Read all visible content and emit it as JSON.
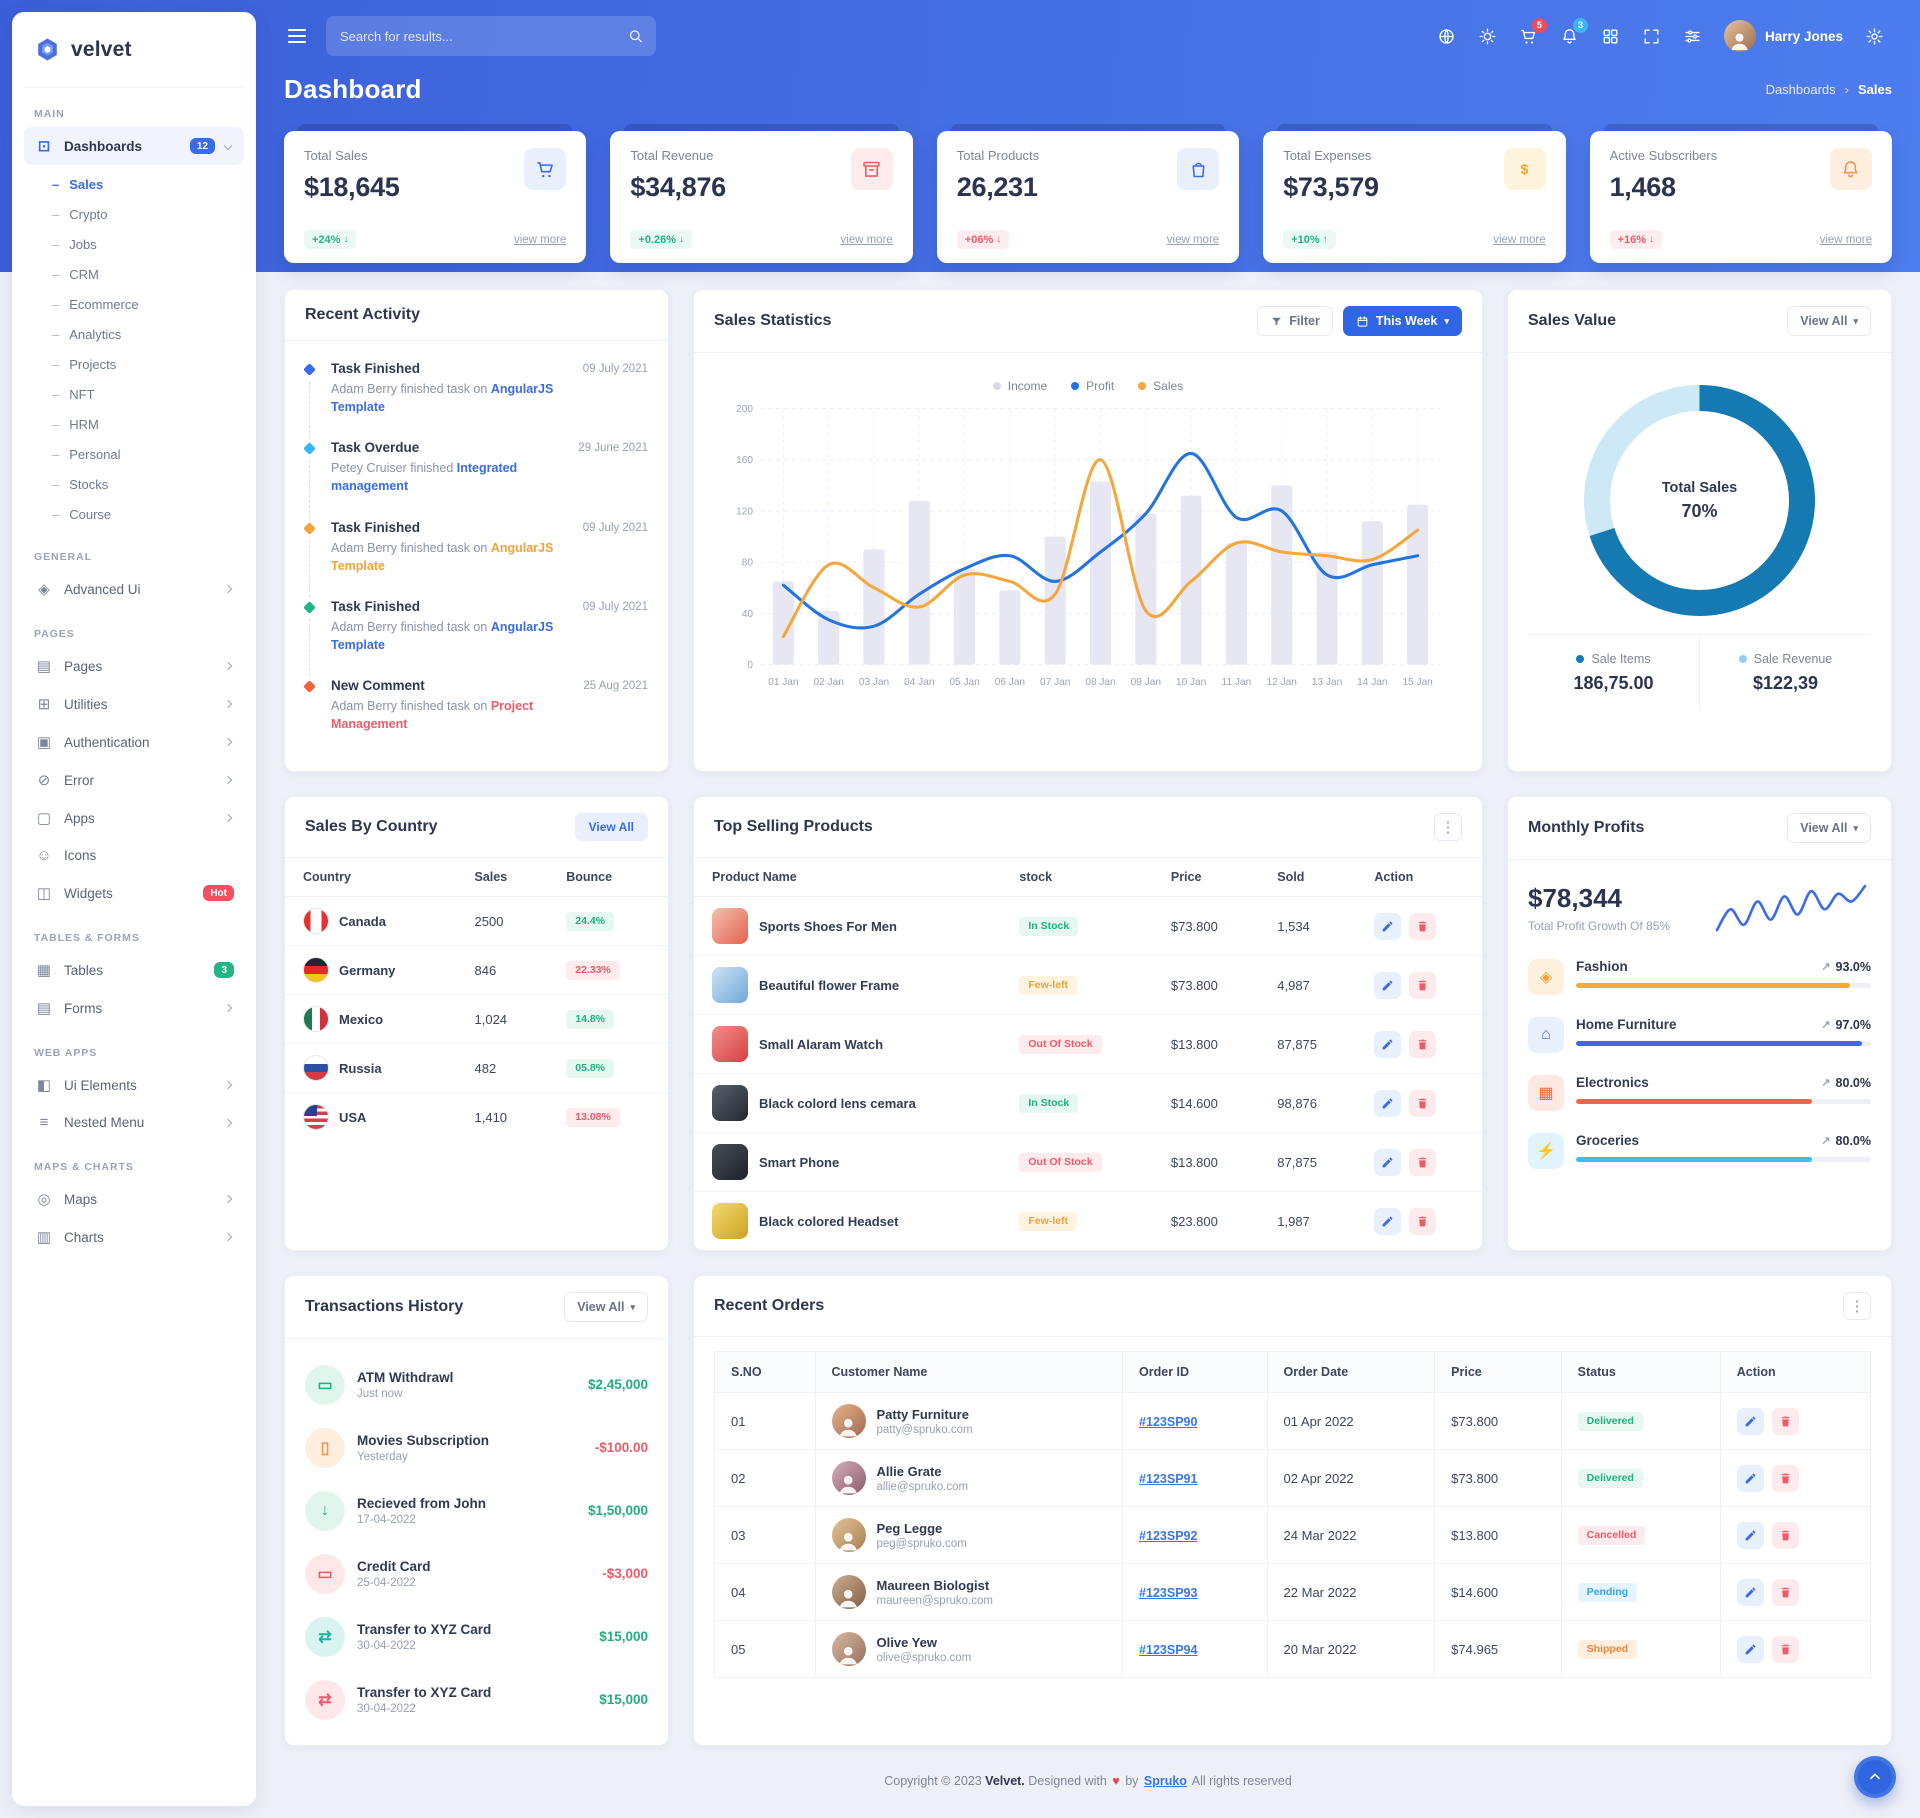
{
  "brand": {
    "name": "velvet"
  },
  "topbar": {
    "search_placeholder": "Search for results...",
    "cart_badge": "5",
    "alert_badge": "3",
    "user_name": "Harry Jones",
    "icons": [
      "globe-icon",
      "theme-icon",
      "cart-icon",
      "notifications-icon",
      "apps-grid-icon",
      "fullscreen-icon",
      "filter-icon",
      "settings-gear-icon"
    ]
  },
  "page_header": {
    "title": "Dashboard",
    "breadcrumb_root": "Dashboards",
    "breadcrumb_sep": "›",
    "breadcrumb_current": "Sales"
  },
  "stat_cards": [
    {
      "label": "Total Sales",
      "value": "$18,645",
      "delta": "+24%",
      "arrow": "↓",
      "tone": "success",
      "link": "view more",
      "icon": "cart-icon"
    },
    {
      "label": "Total Revenue",
      "value": "$34,876",
      "delta": "+0.26%",
      "arrow": "↓",
      "tone": "success",
      "link": "view more",
      "icon": "revenue-box-icon"
    },
    {
      "label": "Total Products",
      "value": "26,231",
      "delta": "+06%",
      "arrow": "↓",
      "tone": "danger",
      "link": "view more",
      "icon": "products-bag-icon"
    },
    {
      "label": "Total Expenses",
      "value": "$73,579",
      "delta": "+10%",
      "arrow": "↑",
      "tone": "success",
      "link": "view more",
      "icon": "expenses-dollar-icon"
    },
    {
      "label": "Active Subscribers",
      "value": "1,468",
      "delta": "+16%",
      "arrow": "↓",
      "tone": "danger",
      "link": "view more",
      "icon": "subscribers-bell-icon"
    }
  ],
  "recent_activity": {
    "title": "Recent Activity",
    "items": [
      {
        "title": "Task Finished",
        "pre": "Adam Berry finished task on",
        "highlight": "AngularJS Template",
        "date": "09 July 2021",
        "tone": "primary",
        "hl": "primary"
      },
      {
        "title": "Task Overdue",
        "pre": "Petey Cruiser finished",
        "highlight": "Integrated management",
        "date": "29 June 2021",
        "tone": "info",
        "hl": "primary"
      },
      {
        "title": "Task Finished",
        "pre": "Adam Berry finished task on",
        "highlight": "AngularJS Template",
        "date": "09 July 2021",
        "tone": "warning",
        "hl": "warning"
      },
      {
        "title": "Task Finished",
        "pre": "Adam Berry finished task on",
        "highlight": "AngularJS Template",
        "date": "09 July 2021",
        "tone": "success",
        "hl": "primary"
      },
      {
        "title": "New Comment",
        "pre": "Adam Berry finished task on",
        "highlight": "Project Management",
        "date": "25 Aug 2021",
        "tone": "danger",
        "hl": "danger"
      }
    ]
  },
  "sales_statistics": {
    "title": "Sales Statistics",
    "filter_label": "Filter",
    "range_label": "This Week",
    "legend": [
      {
        "label": "Income",
        "color": "#d9d9ec"
      },
      {
        "label": "Profit",
        "color": "#2274e0"
      },
      {
        "label": "Sales",
        "color": "#f5a63c"
      }
    ]
  },
  "sales_value": {
    "title": "Sales Value",
    "view_all": "View All",
    "center_label": "Total Sales",
    "center_value": "70%",
    "stats": [
      {
        "label": "Sale Items",
        "value": "186,75.00",
        "color": "#1579b2"
      },
      {
        "label": "Sale Revenue",
        "value": "$122,39",
        "color": "#8fd0ee"
      }
    ]
  },
  "sales_by_country": {
    "title": "Sales By Country",
    "view_all": "View All",
    "columns": [
      "Country",
      "Sales",
      "Bounce"
    ],
    "rows": [
      {
        "country": "Canada",
        "flag": "flag-canada",
        "flag_icon": "canada-flag-icon",
        "sales": "2500",
        "bounce": "24.4%",
        "tone": "success"
      },
      {
        "country": "Germany",
        "flag": "flag-germany",
        "flag_icon": "germany-flag-icon",
        "sales": "846",
        "bounce": "22.33%",
        "tone": "danger"
      },
      {
        "country": "Mexico",
        "flag": "flag-mexico",
        "flag_icon": "mexico-flag-icon",
        "sales": "1,024",
        "bounce": "14.8%",
        "tone": "success"
      },
      {
        "country": "Russia",
        "flag": "flag-russia",
        "flag_icon": "russia-flag-icon",
        "sales": "482",
        "bounce": "05.8%",
        "tone": "success"
      },
      {
        "country": "USA",
        "flag": "flag-usa",
        "flag_icon": "usa-flag-icon",
        "sales": "1,410",
        "bounce": "13.08%",
        "tone": "danger"
      }
    ]
  },
  "top_selling": {
    "title": "Top Selling Products",
    "columns": [
      "Product Name",
      "stock",
      "Price",
      "Sold",
      "Action"
    ],
    "rows": [
      {
        "name": "Sports Shoes For Men",
        "stock": "In Stock",
        "stock_tone": "success",
        "price": "$73.800",
        "sold": "1,534",
        "thumb": "th-shoes",
        "thumb_icon": "shoes-product-image"
      },
      {
        "name": "Beautiful flower Frame",
        "stock": "Few-left",
        "stock_tone": "warning",
        "price": "$73.800",
        "sold": "4,987",
        "thumb": "th-flower",
        "thumb_icon": "flower-product-image"
      },
      {
        "name": "Small Alaram Watch",
        "stock": "Out Of Stock",
        "stock_tone": "danger",
        "price": "$13.800",
        "sold": "87,875",
        "thumb": "th-watch",
        "thumb_icon": "watch-product-image"
      },
      {
        "name": "Black colord lens cemara",
        "stock": "In Stock",
        "stock_tone": "success",
        "price": "$14.600",
        "sold": "98,876",
        "thumb": "th-camera",
        "thumb_icon": "camera-product-image"
      },
      {
        "name": "Smart Phone",
        "stock": "Out Of Stock",
        "stock_tone": "danger",
        "price": "$13.800",
        "sold": "87,875",
        "thumb": "th-phone",
        "thumb_icon": "phone-product-image"
      },
      {
        "name": "Black colored Headset",
        "stock": "Few-left",
        "stock_tone": "warning",
        "price": "$23.800",
        "sold": "1,987",
        "thumb": "th-headset",
        "thumb_icon": "headset-product-image"
      }
    ]
  },
  "monthly_profits": {
    "title": "Monthly Profits",
    "view_all": "View All",
    "amount": "$78,344",
    "subtitle": "Total Profit Growth Of 85%",
    "categories": [
      {
        "label": "Fashion",
        "icon": "fashion-icon",
        "glyph": "◈",
        "pct": "93.0%",
        "width": "93%",
        "tone": "warning"
      },
      {
        "label": "Home Furniture",
        "icon": "home-icon",
        "glyph": "⌂",
        "pct": "97.0%",
        "width": "97%",
        "tone": "primary"
      },
      {
        "label": "Electronics",
        "icon": "electronics-icon",
        "glyph": "▦",
        "pct": "80.0%",
        "width": "80%",
        "tone": "orange"
      },
      {
        "label": "Groceries",
        "icon": "groceries-icon",
        "glyph": "⚡",
        "pct": "80.0%",
        "width": "80%",
        "tone": "info"
      }
    ]
  },
  "transactions": {
    "title": "Transactions History",
    "view_all": "View All",
    "items": [
      {
        "title": "ATM Withdrawl",
        "time": "Just now",
        "amount": "$2,45,000",
        "amount_tone": "pos",
        "icon": "card-icon",
        "tone": "t-success",
        "glyph": "▭"
      },
      {
        "title": "Movies Subscription",
        "time": "Yesterday",
        "amount": "-$100.00",
        "amount_tone": "neg",
        "icon": "mobile-icon",
        "tone": "t-orange",
        "glyph": "▯"
      },
      {
        "title": "Recieved from John",
        "time": "17-04-2022",
        "amount": "$1,50,000",
        "amount_tone": "pos",
        "icon": "arrow-down-icon",
        "tone": "t-success",
        "glyph": "↓"
      },
      {
        "title": "Credit Card",
        "time": "25-04-2022",
        "amount": "-$3,000",
        "amount_tone": "neg",
        "icon": "card-icon",
        "tone": "t-danger",
        "glyph": "▭"
      },
      {
        "title": "Transfer to XYZ Card",
        "time": "30-04-2022",
        "amount": "$15,000",
        "amount_tone": "pos",
        "icon": "transfer-icon",
        "tone": "t-teal",
        "glyph": "⇄"
      },
      {
        "title": "Transfer to XYZ Card",
        "time": "30-04-2022",
        "amount": "$15,000",
        "amount_tone": "pos",
        "icon": "transfer-icon",
        "tone": "t-danger",
        "glyph": "⇄"
      }
    ]
  },
  "recent_orders": {
    "title": "Recent Orders",
    "columns": [
      "S.NO",
      "Customer Name",
      "Order ID",
      "Order Date",
      "Price",
      "Status",
      "Action"
    ],
    "rows": [
      {
        "sno": "01",
        "name": "Patty Furniture",
        "email": "patty@spruko.com",
        "order_id": "#123SP90",
        "date": "01 Apr 2022",
        "price": "$73.800",
        "status": "Delivered",
        "status_tone": "success",
        "avatar": "av1"
      },
      {
        "sno": "02",
        "name": "Allie Grate",
        "email": "allie@spruko.com",
        "order_id": "#123SP91",
        "date": "02 Apr 2022",
        "price": "$73.800",
        "status": "Delivered",
        "status_tone": "success",
        "avatar": "av2"
      },
      {
        "sno": "03",
        "name": "Peg Legge",
        "email": "peg@spruko.com",
        "order_id": "#123SP92",
        "date": "24 Mar 2022",
        "price": "$13.800",
        "status": "Cancelled",
        "status_tone": "danger",
        "avatar": "av3"
      },
      {
        "sno": "04",
        "name": "Maureen Biologist",
        "email": "maureen@spruko.com",
        "order_id": "#123SP93",
        "date": "22 Mar 2022",
        "price": "$14.600",
        "status": "Pending",
        "status_tone": "info",
        "avatar": "av4"
      },
      {
        "sno": "05",
        "name": "Olive Yew",
        "email": "olive@spruko.com",
        "order_id": "#123SP94",
        "date": "20 Mar 2022",
        "price": "$74.965",
        "status": "Shipped",
        "status_tone": "orange",
        "avatar": "av5"
      }
    ]
  },
  "footer": {
    "pre": "Copyright © 2023",
    "brand": "Velvet.",
    "mid": "Designed with",
    "by": "by",
    "link": "Spruko",
    "post": "All rights reserved"
  },
  "sidebar": {
    "sections": [
      {
        "heading": "Main"
      },
      {
        "heading": "General"
      },
      {
        "heading": "Pages"
      },
      {
        "heading": "Tables & Forms"
      },
      {
        "heading": "Web Apps"
      },
      {
        "heading": "Maps & Charts"
      }
    ],
    "dashboards": {
      "label": "Dashboards",
      "badge": "12",
      "icon": "dashboard-icon",
      "glyph": "⊡"
    },
    "dashboard_children": [
      {
        "label": "Sales",
        "state": "active"
      },
      {
        "label": "Crypto"
      },
      {
        "label": "Jobs"
      },
      {
        "label": "CRM"
      },
      {
        "label": "Ecommerce"
      },
      {
        "label": "Analytics"
      },
      {
        "label": "Projects"
      },
      {
        "label": "NFT"
      },
      {
        "label": "HRM"
      },
      {
        "label": "Personal"
      },
      {
        "label": "Stocks"
      },
      {
        "label": "Course"
      }
    ],
    "general_items": [
      {
        "label": "Advanced Ui",
        "icon": "advanced-ui-icon",
        "glyph": "◈",
        "chevron": true
      }
    ],
    "pages_items": [
      {
        "label": "Pages",
        "icon": "pages-icon",
        "glyph": "▤",
        "chevron": true
      },
      {
        "label": "Utilities",
        "icon": "utilities-icon",
        "glyph": "⊞",
        "chevron": true
      },
      {
        "label": "Authentication",
        "icon": "authentication-lock-icon",
        "glyph": "▣",
        "chevron": true
      },
      {
        "label": "Error",
        "icon": "error-icon",
        "glyph": "⊘",
        "chevron": true
      },
      {
        "label": "Apps",
        "icon": "apps-icon",
        "glyph": "▢",
        "chevron": true
      },
      {
        "label": "Icons",
        "icon": "icons-smiley-icon",
        "glyph": "☺"
      },
      {
        "label": "Widgets",
        "icon": "widgets-icon",
        "glyph": "◫",
        "badge": "Hot",
        "badge_tone": "badge-danger"
      }
    ],
    "tables_items": [
      {
        "label": "Tables",
        "icon": "tables-icon",
        "glyph": "▦",
        "badge": "3",
        "badge_tone": "badge-success"
      },
      {
        "label": "Forms",
        "icon": "forms-icon",
        "glyph": "▤",
        "chevron": true
      }
    ],
    "webapps_items": [
      {
        "label": "Ui Elements",
        "icon": "ui-elements-icon",
        "glyph": "◧",
        "chevron": true
      },
      {
        "label": "Nested Menu",
        "icon": "nested-menu-icon",
        "glyph": "≡",
        "chevron": true
      }
    ],
    "maps_items": [
      {
        "label": "Maps",
        "icon": "maps-icon",
        "glyph": "◎",
        "chevron": true
      },
      {
        "label": "Charts",
        "icon": "charts-icon",
        "glyph": "▥",
        "chevron": true
      }
    ]
  },
  "chart_data": [
    {
      "type": "bar+line",
      "title": "Sales Statistics",
      "x": [
        "01 Jan",
        "02 Jan",
        "03 Jan",
        "04 Jan",
        "05 Jan",
        "06 Jan",
        "07 Jan",
        "08 Jan",
        "09 Jan",
        "10 Jan",
        "11 Jan",
        "12 Jan",
        "13 Jan",
        "14 Jan",
        "15 Jan"
      ],
      "ylim": [
        0,
        200
      ],
      "yticks": [
        0,
        40,
        80,
        120,
        160,
        200
      ],
      "series": [
        {
          "name": "Income",
          "type": "bar",
          "color": "#e7e7f3",
          "values": [
            65,
            42,
            90,
            128,
            75,
            58,
            100,
            143,
            118,
            132,
            95,
            140,
            88,
            112,
            125
          ]
        },
        {
          "name": "Profit",
          "type": "line",
          "color": "#2274e0",
          "values": [
            62,
            35,
            30,
            55,
            75,
            85,
            65,
            88,
            118,
            165,
            115,
            120,
            70,
            78,
            85
          ]
        },
        {
          "name": "Sales",
          "type": "line",
          "color": "#f5a63c",
          "values": [
            22,
            78,
            60,
            45,
            70,
            65,
            55,
            160,
            42,
            65,
            95,
            88,
            85,
            82,
            105
          ]
        }
      ]
    },
    {
      "type": "donut",
      "title": "Total Sales",
      "value_pct": 70,
      "segments": [
        {
          "label": "Sale Items",
          "value": 70,
          "color": "#1579b2"
        },
        {
          "label": "Sale Revenue",
          "value": 30,
          "color": "#cde9f6"
        }
      ]
    },
    {
      "type": "line",
      "name": "Monthly Profit Trend",
      "color": "#3a6be8",
      "values": [
        18,
        34,
        22,
        40,
        26,
        44,
        30,
        48,
        34,
        46,
        40,
        52
      ]
    }
  ]
}
